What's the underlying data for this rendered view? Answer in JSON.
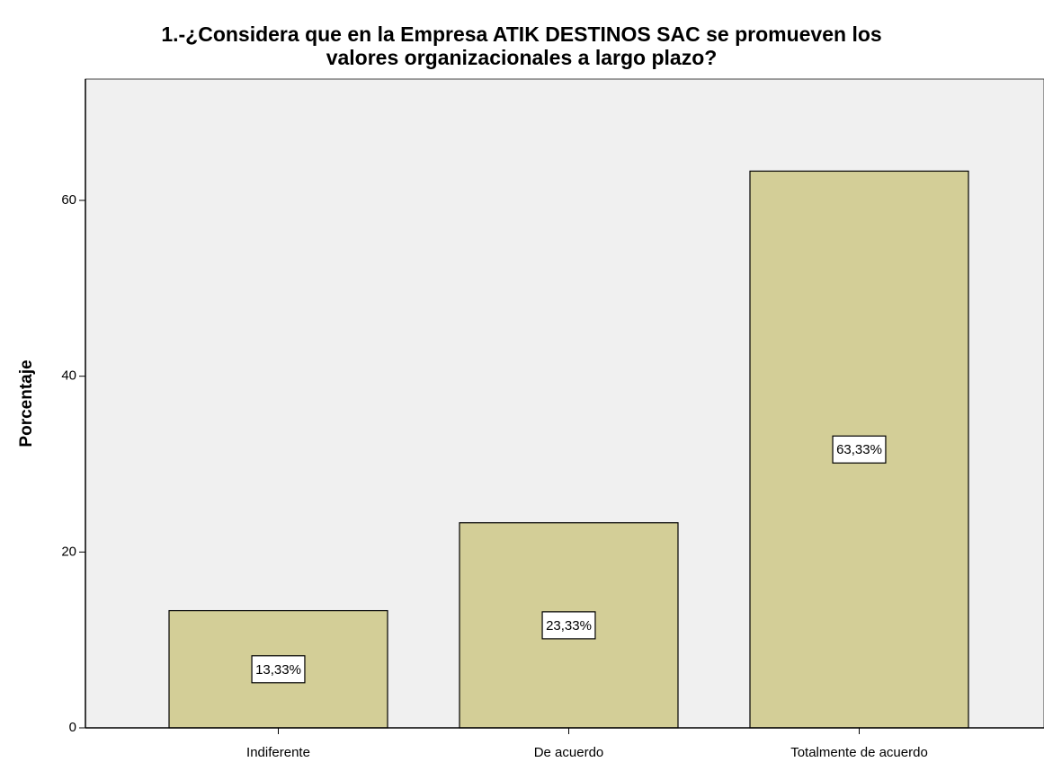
{
  "chart_data": {
    "type": "bar",
    "title": [
      "1.-¿Considera que en la Empresa ATIK DESTINOS SAC se promueven los",
      "valores organizacionales a largo plazo?"
    ],
    "y_label": "Porcentaje",
    "categories": [
      "Indiferente",
      "De acuerdo",
      "Totalmente de acuerdo"
    ],
    "values": [
      13.33,
      23.33,
      63.33
    ],
    "value_labels": [
      "13,33%",
      "23,33%",
      "63,33%"
    ],
    "color": "#d3ce97",
    "ylim": [
      0,
      73.8
    ],
    "yticks": [
      0,
      20,
      40,
      60
    ],
    "grid": false
  }
}
